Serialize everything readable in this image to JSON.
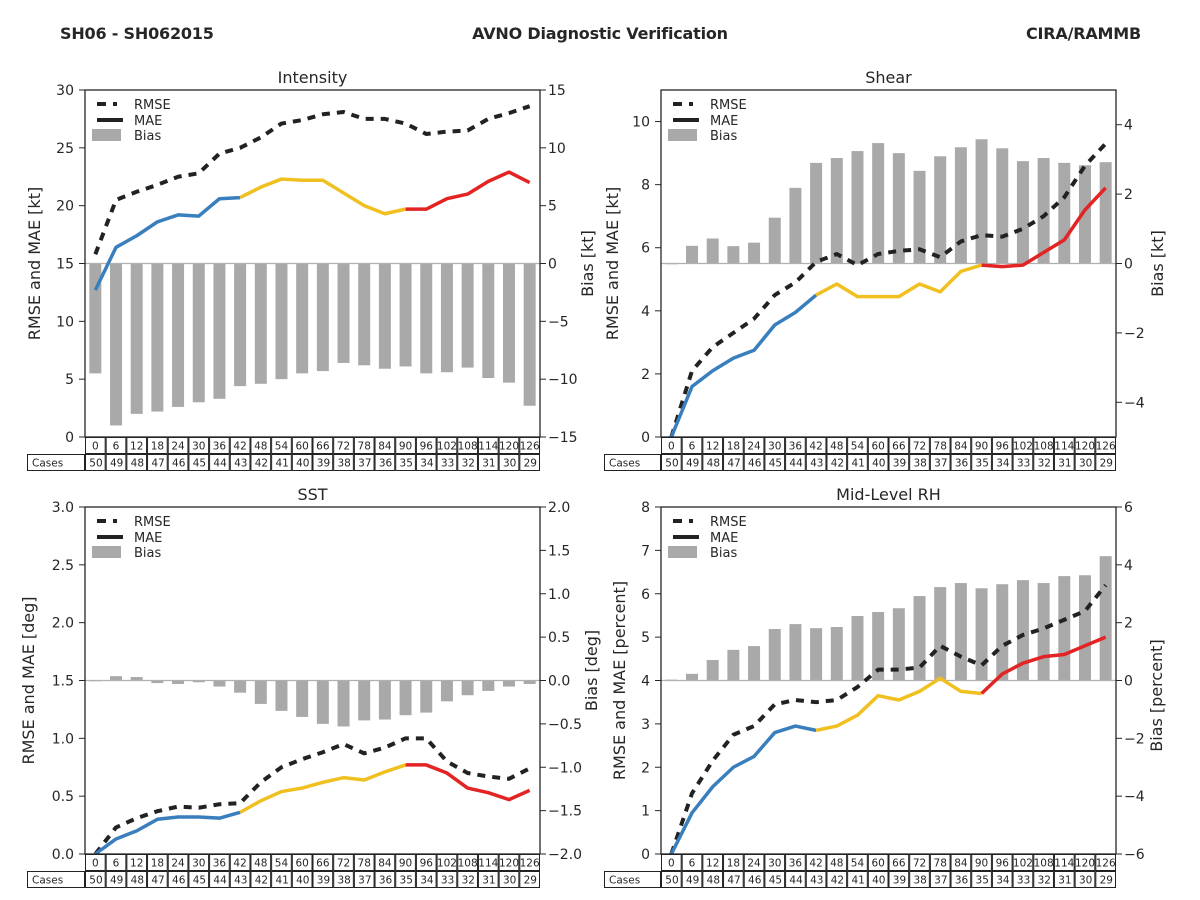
{
  "header": {
    "left": "SH06 - SH062015",
    "center": "AVNO Diagnostic Verification",
    "right": "CIRA/RAMMB"
  },
  "colors": {
    "rmse": "#222222",
    "bias": "#a9a9a9",
    "mae_segments": [
      "#3a7fbd",
      "#f0c020",
      "#e32424"
    ],
    "zero_line": "#b0b0b0"
  },
  "legend": {
    "rmse": "RMSE",
    "mae": "MAE",
    "bias": "Bias",
    "placement": "top-left"
  },
  "table": {
    "cases_label": "Cases",
    "hours": [
      "0",
      "6",
      "12",
      "18",
      "24",
      "30",
      "36",
      "42",
      "48",
      "54",
      "60",
      "66",
      "72",
      "78",
      "84",
      "90",
      "96",
      "102",
      "108",
      "114",
      "120",
      "126"
    ],
    "cases": [
      "50",
      "49",
      "48",
      "47",
      "46",
      "45",
      "44",
      "43",
      "42",
      "41",
      "40",
      "39",
      "38",
      "37",
      "36",
      "35",
      "34",
      "33",
      "32",
      "31",
      "30",
      "29"
    ]
  },
  "chart_data": [
    {
      "type": "line",
      "title": "Intensity",
      "xlabel": "",
      "ylabel": "RMSE and MAE [kt]",
      "ylabel_right": "Bias [kt]",
      "x": [
        0,
        6,
        12,
        18,
        24,
        30,
        36,
        42,
        48,
        54,
        60,
        66,
        72,
        78,
        84,
        90,
        96,
        102,
        108,
        114,
        120,
        126
      ],
      "ylim": [
        0,
        30
      ],
      "yticks": [
        0,
        5,
        10,
        15,
        20,
        25,
        30
      ],
      "ytick_labels": [
        "0",
        "5",
        "10",
        "15",
        "20",
        "25",
        "30"
      ],
      "ylim_right": [
        -15,
        15
      ],
      "yticks_right": [
        -15,
        -10,
        -5,
        0,
        5,
        10,
        15
      ],
      "ytick_labels_right": [
        "−15",
        "−10",
        "−5",
        "0",
        "5",
        "10",
        "15"
      ],
      "mae_segment_breaks": [
        42,
        90
      ],
      "series": [
        {
          "name": "RMSE",
          "axis": "left",
          "style": "dashed",
          "values": [
            15.8,
            20.5,
            21.2,
            21.8,
            22.5,
            22.8,
            24.5,
            25.0,
            25.9,
            27.1,
            27.4,
            27.9,
            28.1,
            27.5,
            27.5,
            27.1,
            26.2,
            26.4,
            26.5,
            27.5,
            28.0,
            28.6
          ]
        },
        {
          "name": "MAE",
          "axis": "left",
          "style": "solid",
          "values": [
            12.7,
            16.4,
            17.4,
            18.6,
            19.2,
            19.1,
            20.6,
            20.7,
            21.6,
            22.3,
            22.2,
            22.2,
            21.1,
            20.0,
            19.3,
            19.7,
            19.7,
            20.6,
            21.0,
            22.1,
            22.9,
            22.0
          ]
        },
        {
          "name": "Bias",
          "axis": "right",
          "style": "bar",
          "values": [
            -9.5,
            -14.0,
            -13.0,
            -12.8,
            -12.4,
            -12.0,
            -11.7,
            -10.6,
            -10.4,
            -10.0,
            -9.5,
            -9.3,
            -8.6,
            -8.8,
            -9.1,
            -8.9,
            -9.5,
            -9.4,
            -9.0,
            -9.9,
            -10.3,
            -12.3
          ]
        }
      ]
    },
    {
      "type": "line",
      "title": "Shear",
      "xlabel": "",
      "ylabel": "RMSE and MAE [kt]",
      "ylabel_right": "Bias [kt]",
      "x": [
        0,
        6,
        12,
        18,
        24,
        30,
        36,
        42,
        48,
        54,
        60,
        66,
        72,
        78,
        84,
        90,
        96,
        102,
        108,
        114,
        120,
        126
      ],
      "ylim": [
        0,
        11
      ],
      "yticks": [
        0,
        2,
        4,
        6,
        8,
        10
      ],
      "ytick_labels": [
        "0",
        "2",
        "4",
        "6",
        "8",
        "10"
      ],
      "ylim_right": [
        -5,
        5
      ],
      "yticks_right": [
        -4,
        -2,
        0,
        2,
        4
      ],
      "ytick_labels_right": [
        "−4",
        "−2",
        "0",
        "2",
        "4"
      ],
      "mae_segment_breaks": [
        42,
        90
      ],
      "series": [
        {
          "name": "RMSE",
          "axis": "left",
          "style": "dashed",
          "values": [
            0.0,
            2.1,
            2.85,
            3.3,
            3.75,
            4.5,
            4.9,
            5.55,
            5.8,
            5.45,
            5.8,
            5.9,
            5.95,
            5.7,
            6.2,
            6.4,
            6.35,
            6.6,
            7.0,
            7.6,
            8.6,
            9.3
          ]
        },
        {
          "name": "MAE",
          "axis": "left",
          "style": "solid",
          "values": [
            0.0,
            1.6,
            2.1,
            2.5,
            2.75,
            3.55,
            3.95,
            4.5,
            4.85,
            4.45,
            4.45,
            4.45,
            4.85,
            4.6,
            5.25,
            5.45,
            5.4,
            5.45,
            5.85,
            6.25,
            7.2,
            7.9
          ]
        },
        {
          "name": "Bias",
          "axis": "right",
          "style": "bar",
          "values": [
            0.0,
            0.51,
            0.72,
            0.5,
            0.6,
            1.32,
            2.18,
            2.9,
            3.04,
            3.24,
            3.47,
            3.18,
            2.67,
            3.09,
            3.35,
            3.58,
            3.32,
            2.95,
            3.04,
            2.9,
            2.83,
            2.92
          ]
        }
      ]
    },
    {
      "type": "line",
      "title": "SST",
      "xlabel": "",
      "ylabel": "RMSE and MAE [deg]",
      "ylabel_right": "Bias [deg]",
      "x": [
        0,
        6,
        12,
        18,
        24,
        30,
        36,
        42,
        48,
        54,
        60,
        66,
        72,
        78,
        84,
        90,
        96,
        102,
        108,
        114,
        120,
        126
      ],
      "ylim": [
        0,
        3.0
      ],
      "yticks": [
        0,
        0.5,
        1.0,
        1.5,
        2.0,
        2.5,
        3.0
      ],
      "ytick_labels": [
        "0.0",
        "0.5",
        "1.0",
        "1.5",
        "2.0",
        "2.5",
        "3.0"
      ],
      "ylim_right": [
        -2.0,
        2.0
      ],
      "yticks_right": [
        -2.0,
        -1.5,
        -1.0,
        -0.5,
        0.0,
        0.5,
        1.0,
        1.5,
        2.0
      ],
      "ytick_labels_right": [
        "−2.0",
        "−1.5",
        "−1.0",
        "−0.5",
        "0.0",
        "0.5",
        "1.0",
        "1.5",
        "2.0"
      ],
      "mae_segment_breaks": [
        42,
        90
      ],
      "series": [
        {
          "name": "RMSE",
          "axis": "left",
          "style": "dashed",
          "values": [
            0.0,
            0.23,
            0.31,
            0.37,
            0.41,
            0.4,
            0.43,
            0.44,
            0.62,
            0.75,
            0.82,
            0.88,
            0.95,
            0.87,
            0.92,
            1.0,
            1.0,
            0.8,
            0.7,
            0.67,
            0.65,
            0.74
          ]
        },
        {
          "name": "MAE",
          "axis": "left",
          "style": "solid",
          "values": [
            0.0,
            0.13,
            0.2,
            0.3,
            0.32,
            0.32,
            0.31,
            0.36,
            0.46,
            0.54,
            0.57,
            0.62,
            0.66,
            0.64,
            0.71,
            0.77,
            0.77,
            0.7,
            0.57,
            0.53,
            0.47,
            0.55
          ]
        },
        {
          "name": "Bias",
          "axis": "right",
          "style": "bar",
          "values": [
            0.0,
            0.05,
            0.04,
            -0.03,
            -0.04,
            -0.02,
            -0.07,
            -0.14,
            -0.27,
            -0.35,
            -0.42,
            -0.5,
            -0.53,
            -0.46,
            -0.45,
            -0.4,
            -0.37,
            -0.24,
            -0.17,
            -0.12,
            -0.07,
            -0.04
          ]
        }
      ]
    },
    {
      "type": "line",
      "title": "Mid-Level RH",
      "xlabel": "",
      "ylabel": "RMSE and MAE [percent]",
      "ylabel_right": "Bias [percent]",
      "x": [
        0,
        6,
        12,
        18,
        24,
        30,
        36,
        42,
        48,
        54,
        60,
        66,
        72,
        78,
        84,
        90,
        96,
        102,
        108,
        114,
        120,
        126
      ],
      "ylim": [
        0,
        8
      ],
      "yticks": [
        0,
        1,
        2,
        3,
        4,
        5,
        6,
        7,
        8
      ],
      "ytick_labels": [
        "0",
        "1",
        "2",
        "3",
        "4",
        "5",
        "6",
        "7",
        "8"
      ],
      "ylim_right": [
        -6,
        6
      ],
      "yticks_right": [
        -6,
        -4,
        -2,
        0,
        2,
        4,
        6
      ],
      "ytick_labels_right": [
        "−6",
        "−4",
        "−2",
        "0",
        "2",
        "4",
        "6"
      ],
      "mae_segment_breaks": [
        42,
        90
      ],
      "series": [
        {
          "name": "RMSE",
          "axis": "left",
          "style": "dashed",
          "values": [
            0.0,
            1.4,
            2.15,
            2.75,
            2.95,
            3.45,
            3.55,
            3.5,
            3.55,
            3.85,
            4.25,
            4.25,
            4.3,
            4.8,
            4.55,
            4.35,
            4.8,
            5.05,
            5.2,
            5.4,
            5.6,
            6.2
          ]
        },
        {
          "name": "MAE",
          "axis": "left",
          "style": "solid",
          "values": [
            0.0,
            0.95,
            1.55,
            2.0,
            2.25,
            2.8,
            2.95,
            2.85,
            2.95,
            3.2,
            3.65,
            3.55,
            3.75,
            4.05,
            3.75,
            3.7,
            4.15,
            4.4,
            4.55,
            4.6,
            4.8,
            5.0
          ]
        },
        {
          "name": "Bias",
          "axis": "right",
          "style": "bar",
          "values": [
            0.03,
            0.23,
            0.71,
            1.06,
            1.19,
            1.78,
            1.95,
            1.81,
            1.85,
            2.23,
            2.37,
            2.5,
            2.92,
            3.23,
            3.37,
            3.19,
            3.33,
            3.47,
            3.37,
            3.61,
            3.64,
            4.3
          ]
        }
      ]
    }
  ]
}
